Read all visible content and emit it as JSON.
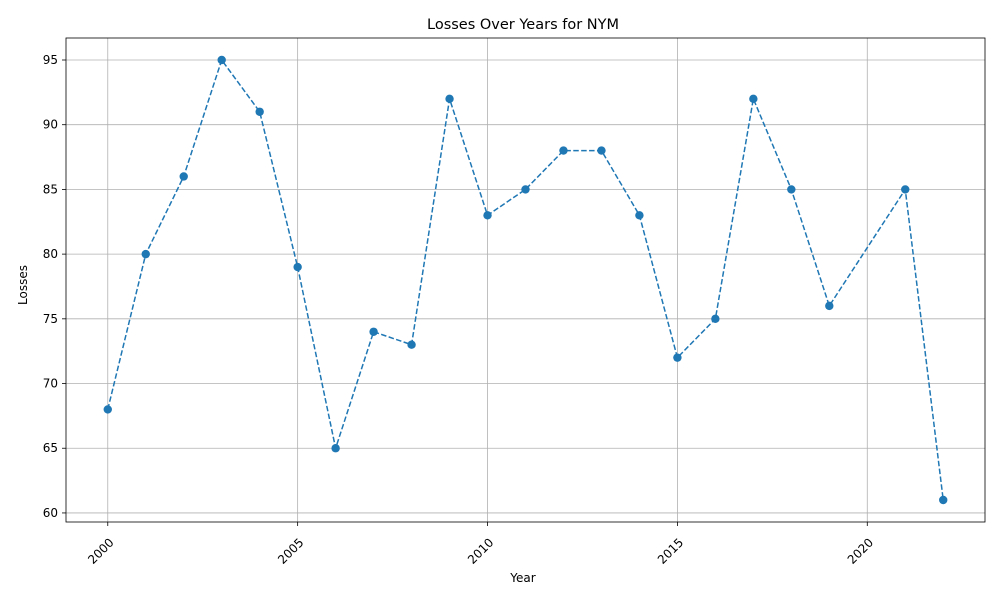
{
  "chart_data": {
    "type": "line",
    "title": "Losses Over Years for NYM",
    "xlabel": "Year",
    "ylabel": "Losses",
    "xlim": [
      1998.9,
      2023.1
    ],
    "ylim": [
      59.3,
      96.7
    ],
    "xticks": [
      2000,
      2005,
      2010,
      2015,
      2020
    ],
    "yticks": [
      60,
      65,
      70,
      75,
      80,
      85,
      90,
      95
    ],
    "grid": true,
    "line_style": "dashed",
    "marker": "circle",
    "series": [
      {
        "color": "#1f77b4",
        "x": [
          2000,
          2001,
          2002,
          2003,
          2004,
          2005,
          2006,
          2007,
          2008,
          2009,
          2010,
          2011,
          2012,
          2013,
          2014,
          2015,
          2016,
          2017,
          2018,
          2019,
          2021,
          2022
        ],
        "y": [
          68,
          80,
          86,
          95,
          91,
          79,
          65,
          74,
          73,
          92,
          83,
          85,
          88,
          88,
          83,
          72,
          75,
          92,
          85,
          76,
          85,
          61
        ]
      }
    ]
  }
}
